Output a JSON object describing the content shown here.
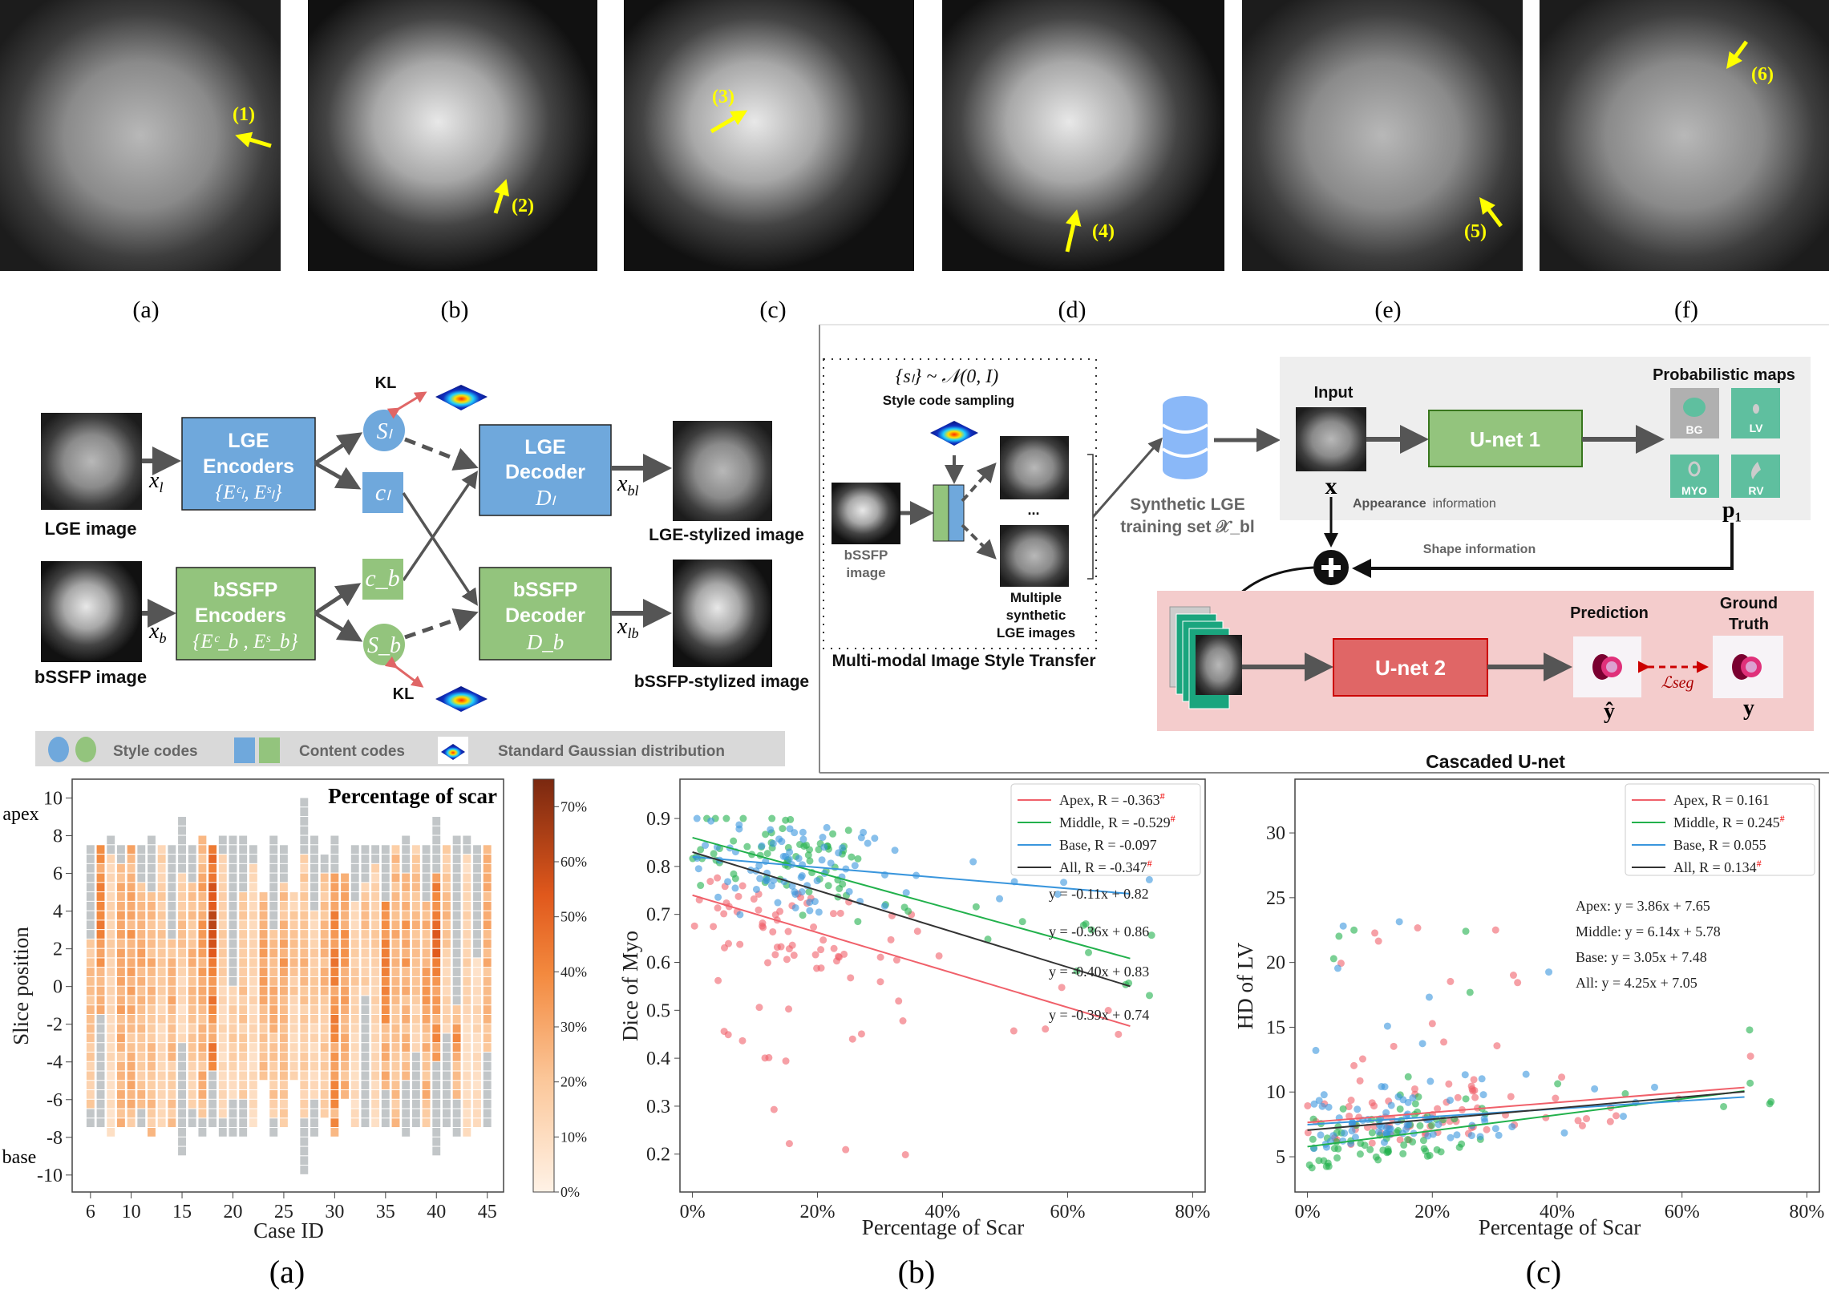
{
  "mri_panels": [
    {
      "label": "(a)",
      "marker": "(1)"
    },
    {
      "label": "(b)",
      "marker": "(2)"
    },
    {
      "label": "(c)",
      "marker": "(3)"
    },
    {
      "label": "(d)",
      "marker": "(4)"
    },
    {
      "label": "(e)",
      "marker": "(5)"
    },
    {
      "label": "(f)",
      "marker": "(6)"
    }
  ],
  "style_transfer": {
    "lge_image_label": "LGE image",
    "bssfp_image_label": "bSSFP image",
    "x_l": {
      "base": "x",
      "sub": "l"
    },
    "x_b": {
      "base": "x",
      "sub": "b"
    },
    "x_bl": {
      "base": "x",
      "sub": "bl"
    },
    "x_lb": {
      "base": "x",
      "sub": "lb"
    },
    "lge_encoder": {
      "line1": "LGE",
      "line2": "Encoders",
      "math": "{Eᶜₗ, Eˢₗ}"
    },
    "bssfp_encoder": {
      "line1": "bSSFP",
      "line2": "Encoders",
      "math": "{Eᶜ_b , Eˢ_b}"
    },
    "lge_decoder": {
      "line1": "LGE",
      "line2": "Decoder",
      "math": "Dₗ"
    },
    "bssfp_decoder": {
      "line1": "bSSFP",
      "line2": "Decoder",
      "math": "D_b"
    },
    "s_l": "Sₗ",
    "c_l": "cₗ",
    "c_b": "c_b",
    "s_b": "S_b",
    "kl_top": "KL",
    "kl_bottom": "KL",
    "lge_stylized_label": "LGE-stylized image",
    "bssfp_stylized_label": "bSSFP-stylized image",
    "legend": {
      "style_codes": "Style codes",
      "content_codes": "Content codes",
      "gaussian": "Standard Gaussian distribution"
    },
    "colors": {
      "lge": "#6fa8dc",
      "bssfp": "#93c47d",
      "kl_arrow": "#e06666"
    }
  },
  "cascaded": {
    "transfer_title": "Multi-modal Image Style Transfer",
    "sampling_formula": "{sₗ} ~ 𝒩(0, I)",
    "sampling_label": "Style code sampling",
    "bssfp_label_1": "bSSFP",
    "bssfp_label_2": "image",
    "ellipsis": "...",
    "synthetic_label_1": "Multiple",
    "synthetic_label_2": "synthetic",
    "synthetic_label_3": "LGE images",
    "dataset_label_1": "Synthetic LGE",
    "dataset_label_2": "training set 𝒳_bl",
    "input_label": "Input",
    "x_symbol": "x",
    "unet1": "U-net 1",
    "prob_maps_label": "Probabilistic maps",
    "maps": [
      "BG",
      "LV",
      "MYO",
      "RV"
    ],
    "p1_symbol": "p₁",
    "appearance_bold": "Appearance",
    "appearance_rest": "information",
    "shape_info": "Shape information",
    "unet2": "U-net 2",
    "prediction_label": "Prediction",
    "ground_truth_1": "Ground",
    "ground_truth_2": "Truth",
    "y_hat": "ŷ",
    "y": "y",
    "loss": "ℒseg",
    "title": "Cascaded U-net",
    "colors": {
      "unet1": "#93c47d",
      "unet2": "#e06666",
      "maps": "#5fbf9f",
      "top_panel": "#eeeeee",
      "bottom_panel": "#f4cccc"
    }
  },
  "panel_labels": [
    "(a)",
    "(b)",
    "(c)"
  ],
  "chart_data": [
    {
      "type": "heatmap",
      "title": "Percentage of scar",
      "xlabel": "Case ID",
      "ylabel": "Slice position",
      "y_end_labels": {
        "top": "apex",
        "bottom": "base"
      },
      "xticks": [
        6,
        10,
        15,
        20,
        25,
        30,
        35,
        40,
        45
      ],
      "yticks": [
        10,
        8,
        6,
        4,
        2,
        0,
        -2,
        -4,
        -6,
        -8,
        -10
      ],
      "xlim": [
        4.2,
        46.6
      ],
      "ylim": [
        -10.9,
        11
      ],
      "colorbar": {
        "range": [
          0,
          75
        ],
        "ticks": [
          0,
          10,
          20,
          30,
          40,
          50,
          60,
          70
        ],
        "tick_labels": [
          "0%",
          "10%",
          "20%",
          "30%",
          "40%",
          "50%",
          "60%",
          "70%"
        ],
        "colors": [
          "#fff2e6",
          "#fbc79a",
          "#f3893e",
          "#e0581c",
          "#7a2810"
        ]
      },
      "no_scar_color": "#c2c6c8",
      "cases": [
        {
          "id": 6,
          "top": 7.5,
          "bottom": -7.5,
          "gray_top_to": 2.5,
          "gray_bottom_from": -6.5,
          "mean": 20,
          "peak": 25
        },
        {
          "id": 7,
          "top": 7.5,
          "bottom": -7.5,
          "gray_top_to": 7.5,
          "gray_bottom_from": -1.5,
          "mean": 35,
          "peak": 50
        },
        {
          "id": 8,
          "top": 8,
          "bottom": -8,
          "gray_top_to": 7,
          "gray_bottom_from": -8,
          "mean": 12,
          "peak": 18
        },
        {
          "id": 9,
          "top": 7.5,
          "bottom": -7.5,
          "gray_top_to": 6.5,
          "gray_bottom_from": -7.5,
          "mean": 28,
          "peak": 35
        },
        {
          "id": 10,
          "top": 7.5,
          "bottom": -7.5,
          "gray_top_to": 7.5,
          "gray_bottom_from": -7.5,
          "mean": 28,
          "peak": 35
        },
        {
          "id": 11,
          "top": 7.5,
          "bottom": -7.5,
          "gray_top_to": 5.5,
          "gray_bottom_from": -6.5,
          "mean": 24,
          "peak": 32
        },
        {
          "id": 12,
          "top": 8,
          "bottom": -8,
          "gray_top_to": 5,
          "gray_bottom_from": -8,
          "mean": 24,
          "peak": 30
        },
        {
          "id": 13,
          "top": 7.5,
          "bottom": -7.5,
          "gray_top_to": 7.5,
          "gray_bottom_from": -7.5,
          "mean": 15,
          "peak": 22
        },
        {
          "id": 14,
          "top": 7.5,
          "bottom": -7.5,
          "gray_top_to": 2.5,
          "gray_bottom_from": -7.5,
          "mean": 22,
          "peak": 30
        },
        {
          "id": 15,
          "top": 9,
          "bottom": -9,
          "gray_top_to": 6,
          "gray_bottom_from": -3,
          "mean": 12,
          "peak": 25
        },
        {
          "id": 16,
          "top": 7.5,
          "bottom": -7.5,
          "gray_top_to": 5.5,
          "gray_bottom_from": -6.5,
          "mean": 20,
          "peak": 28
        },
        {
          "id": 17,
          "top": 8,
          "bottom": -8,
          "gray_top_to": 8,
          "gray_bottom_from": -7,
          "mean": 28,
          "peak": 38
        },
        {
          "id": 18,
          "top": 7.5,
          "bottom": -7.5,
          "gray_top_to": 7.5,
          "gray_bottom_from": -4.5,
          "mean": 45,
          "peak": 72
        },
        {
          "id": 19,
          "top": 8,
          "bottom": -8,
          "gray_top_to": 7,
          "gray_bottom_from": -7,
          "mean": 12,
          "peak": 20
        },
        {
          "id": 20,
          "top": 8,
          "bottom": -8,
          "gray_top_to": 0,
          "gray_bottom_from": -6,
          "mean": 15,
          "peak": 22
        },
        {
          "id": 21,
          "top": 8,
          "bottom": -8,
          "gray_top_to": 5,
          "gray_bottom_from": -6,
          "mean": 20,
          "peak": 25
        },
        {
          "id": 22,
          "top": 7.5,
          "bottom": -7.5,
          "gray_top_to": 6.5,
          "gray_bottom_from": -7.5,
          "mean": 12,
          "peak": 18
        },
        {
          "id": 23,
          "top": 5,
          "bottom": -5,
          "gray_top_to": 5,
          "gray_bottom_from": -5,
          "mean": 25,
          "peak": 38
        },
        {
          "id": 24,
          "top": 8,
          "bottom": -8,
          "gray_top_to": 3,
          "gray_bottom_from": -7,
          "mean": 22,
          "peak": 30
        },
        {
          "id": 25,
          "top": 7.5,
          "bottom": -7.5,
          "gray_top_to": 5.5,
          "gray_bottom_from": -7.5,
          "mean": 22,
          "peak": 35
        },
        {
          "id": 26,
          "top": 5,
          "bottom": -5,
          "gray_top_to": 5,
          "gray_bottom_from": -5,
          "mean": 15,
          "peak": 25
        },
        {
          "id": 27,
          "top": 10,
          "bottom": -10,
          "gray_top_to": 7,
          "gray_bottom_from": -7,
          "mean": 18,
          "peak": 28
        },
        {
          "id": 28,
          "top": 8,
          "bottom": -8,
          "gray_top_to": 4,
          "gray_bottom_from": -6,
          "mean": 14,
          "peak": 22
        },
        {
          "id": 29,
          "top": 7,
          "bottom": -7,
          "gray_top_to": 6,
          "gray_bottom_from": -7,
          "mean": 20,
          "peak": 28
        },
        {
          "id": 30,
          "top": 8,
          "bottom": -8,
          "gray_top_to": 6,
          "gray_bottom_from": -8,
          "mean": 38,
          "peak": 48
        },
        {
          "id": 31,
          "top": 6,
          "bottom": -6,
          "gray_top_to": 6,
          "gray_bottom_from": -6,
          "mean": 28,
          "peak": 38
        },
        {
          "id": 32,
          "top": 7.5,
          "bottom": -7.5,
          "gray_top_to": 4.5,
          "gray_bottom_from": -7.5,
          "mean": 12,
          "peak": 20
        },
        {
          "id": 33,
          "top": 7.5,
          "bottom": -7.5,
          "gray_top_to": 5.5,
          "gray_bottom_from": -0.5,
          "mean": 18,
          "peak": 25
        },
        {
          "id": 34,
          "top": 7.5,
          "bottom": -7.5,
          "gray_top_to": 6.5,
          "gray_bottom_from": -7.5,
          "mean": 14,
          "peak": 20
        },
        {
          "id": 35,
          "top": 7.5,
          "bottom": -7.5,
          "gray_top_to": 4.5,
          "gray_bottom_from": -5.5,
          "mean": 35,
          "peak": 45
        },
        {
          "id": 36,
          "top": 7.5,
          "bottom": -7.5,
          "gray_top_to": 7.5,
          "gray_bottom_from": -7.5,
          "mean": 24,
          "peak": 32
        },
        {
          "id": 37,
          "top": 8,
          "bottom": -8,
          "gray_top_to": 6,
          "gray_bottom_from": -5,
          "mean": 28,
          "peak": 38
        },
        {
          "id": 38,
          "top": 7.5,
          "bottom": -7.5,
          "gray_top_to": 7.5,
          "gray_bottom_from": -3.5,
          "mean": 20,
          "peak": 28
        },
        {
          "id": 39,
          "top": 7.5,
          "bottom": -7.5,
          "gray_top_to": 4.5,
          "gray_bottom_from": -7.5,
          "mean": 28,
          "peak": 38
        },
        {
          "id": 40,
          "top": 9,
          "bottom": -9,
          "gray_top_to": 6,
          "gray_bottom_from": -4,
          "mean": 40,
          "peak": 60
        },
        {
          "id": 41,
          "top": 7.5,
          "bottom": -7.5,
          "gray_top_to": 7.5,
          "gray_bottom_from": -2.5,
          "mean": 15,
          "peak": 28
        },
        {
          "id": 42,
          "top": 8,
          "bottom": -8,
          "gray_top_to": -1,
          "gray_bottom_from": -6,
          "mean": 25,
          "peak": 38
        },
        {
          "id": 43,
          "top": 8,
          "bottom": -8,
          "gray_top_to": 7,
          "gray_bottom_from": -8,
          "mean": 12,
          "peak": 18
        },
        {
          "id": 44,
          "top": 7.5,
          "bottom": -7.5,
          "gray_top_to": 1.5,
          "gray_bottom_from": -7.5,
          "mean": 10,
          "peak": 15
        },
        {
          "id": 45,
          "top": 7.5,
          "bottom": -7.5,
          "gray_top_to": 7.5,
          "gray_bottom_from": -3.5,
          "mean": 25,
          "peak": 35
        }
      ]
    },
    {
      "type": "scatter",
      "xlabel": "Percentage of Scar",
      "ylabel": "Dice of Myo",
      "xticks": [
        0,
        0.2,
        0.4,
        0.6,
        0.8
      ],
      "xtick_labels": [
        "0%",
        "20%",
        "40%",
        "60%",
        "80%"
      ],
      "yticks": [
        0.2,
        0.3,
        0.4,
        0.5,
        0.6,
        0.7,
        0.8,
        0.9
      ],
      "ytick_labels": [
        "0.2",
        "0.3",
        "0.4",
        "0.5",
        "0.6",
        "0.7",
        "0.8",
        "0.9"
      ],
      "xlim": [
        -0.02,
        0.82
      ],
      "ylim": [
        0.121,
        0.982
      ],
      "legend_position": "top-right",
      "significance_mark": "#",
      "series": [
        {
          "name": "Apex",
          "r": "-0.363",
          "significant": true,
          "color": "#f0606a",
          "fit": {
            "slope": -0.39,
            "intercept": 0.74,
            "x_range": [
              0,
              0.7
            ]
          },
          "fit_label": "y = -0.39x + 0.74"
        },
        {
          "name": "Middle",
          "r": "-0.529",
          "significant": true,
          "color": "#22b14c",
          "fit": {
            "slope": -0.36,
            "intercept": 0.86,
            "x_range": [
              0,
              0.7
            ]
          },
          "fit_label": "y = -0.36x + 0.86"
        },
        {
          "name": "Base",
          "r": "-0.097",
          "significant": false,
          "color": "#3a96dd",
          "fit": {
            "slope": -0.11,
            "intercept": 0.82,
            "x_range": [
              0,
              0.7
            ]
          },
          "fit_label": "y = -0.11x + 0.82"
        },
        {
          "name": "All",
          "r": "-0.347",
          "significant": true,
          "color": "#333333",
          "fit": {
            "slope": -0.4,
            "intercept": 0.83,
            "x_range": [
              0,
              0.7
            ]
          },
          "fit_label": "y = -0.40x + 0.83"
        }
      ]
    },
    {
      "type": "scatter",
      "xlabel": "Percentage of Scar",
      "ylabel": "HD of LV",
      "xticks": [
        0,
        0.2,
        0.4,
        0.6,
        0.8
      ],
      "xtick_labels": [
        "0%",
        "20%",
        "40%",
        "60%",
        "80%"
      ],
      "yticks": [
        5,
        10,
        15,
        20,
        25,
        30
      ],
      "ytick_labels": [
        "5",
        "10",
        "15",
        "20",
        "25",
        "30"
      ],
      "xlim": [
        -0.02,
        0.82
      ],
      "ylim": [
        2.28,
        34.15
      ],
      "legend_position": "top-right",
      "significance_mark": "#",
      "series": [
        {
          "name": "Apex",
          "r": "0.161",
          "significant": false,
          "color": "#f0606a",
          "fit": {
            "slope": 3.86,
            "intercept": 7.65,
            "x_range": [
              0,
              0.7
            ]
          },
          "fit_label": "Apex: y = 3.86x + 7.65"
        },
        {
          "name": "Middle",
          "r": "0.245",
          "significant": true,
          "color": "#22b14c",
          "fit": {
            "slope": 6.14,
            "intercept": 5.78,
            "x_range": [
              0,
              0.7
            ]
          },
          "fit_label": "Middle: y = 6.14x + 5.78"
        },
        {
          "name": "Base",
          "r": "0.055",
          "significant": false,
          "color": "#3a96dd",
          "fit": {
            "slope": 3.05,
            "intercept": 7.48,
            "x_range": [
              0,
              0.7
            ]
          },
          "fit_label": "Base: y = 3.05x + 7.48"
        },
        {
          "name": "All",
          "r": "0.134",
          "significant": true,
          "color": "#333333",
          "fit": {
            "slope": 4.25,
            "intercept": 7.05,
            "x_range": [
              0,
              0.7
            ]
          },
          "fit_label": "All: y = 4.25x + 7.05"
        }
      ]
    }
  ]
}
